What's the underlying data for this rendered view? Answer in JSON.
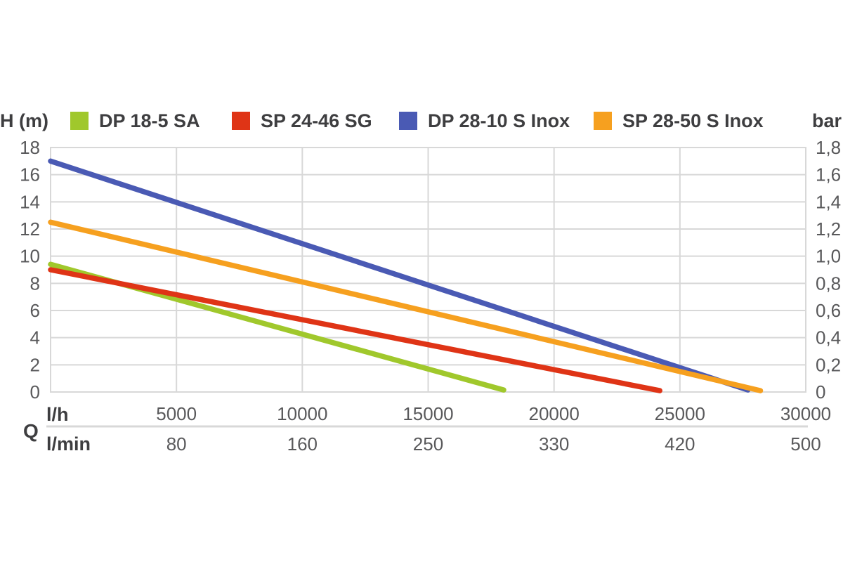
{
  "chart": {
    "left_axis_label": "H (m)",
    "right_axis_label": "bar",
    "q_label": "Q",
    "x_row1_label": "l/h",
    "x_row2_label": "l/min",
    "colors": {
      "grid": "#d8d8d8",
      "label_text": "#3e3e40",
      "tick_text": "#59595b",
      "background": "#ffffff"
    }
  },
  "chart_data": {
    "type": "line",
    "title": "",
    "grid": true,
    "legend_position": "top",
    "x_axis": {
      "label": "Q",
      "primary_unit": "l/h",
      "secondary_unit": "l/min",
      "range_lh": [
        0,
        30000
      ],
      "ticks_lh": [
        5000,
        10000,
        15000,
        20000,
        25000,
        30000
      ],
      "ticks_lmin": [
        80,
        160,
        250,
        330,
        420,
        500
      ]
    },
    "y_axis_left": {
      "label": "H (m)",
      "range": [
        0,
        18
      ],
      "ticks": [
        0,
        2,
        4,
        6,
        8,
        10,
        12,
        14,
        16,
        18
      ]
    },
    "y_axis_right": {
      "label": "bar",
      "range": [
        0,
        1.8
      ],
      "tick_labels": [
        "0",
        "0,2",
        "0,4",
        "0,6",
        "0,8",
        "1,0",
        "1,2",
        "1,4",
        "1,6",
        "1,8"
      ]
    },
    "series": [
      {
        "name": "DP 18-5 SA",
        "color": "#a0c82c",
        "points_lh_m": [
          [
            0,
            9.4
          ],
          [
            18000,
            0.15
          ]
        ]
      },
      {
        "name": "SP 24-46 SG",
        "color": "#df3416",
        "points_lh_m": [
          [
            0,
            9.0
          ],
          [
            24200,
            0.1
          ]
        ]
      },
      {
        "name": "DP 28-10 S Inox",
        "color": "#4a5ab4",
        "points_lh_m": [
          [
            0,
            17.0
          ],
          [
            27700,
            0.15
          ]
        ]
      },
      {
        "name": "SP 28-50 S Inox",
        "color": "#f6a01f",
        "points_lh_m": [
          [
            0,
            12.5
          ],
          [
            28200,
            0.1
          ]
        ]
      }
    ]
  }
}
